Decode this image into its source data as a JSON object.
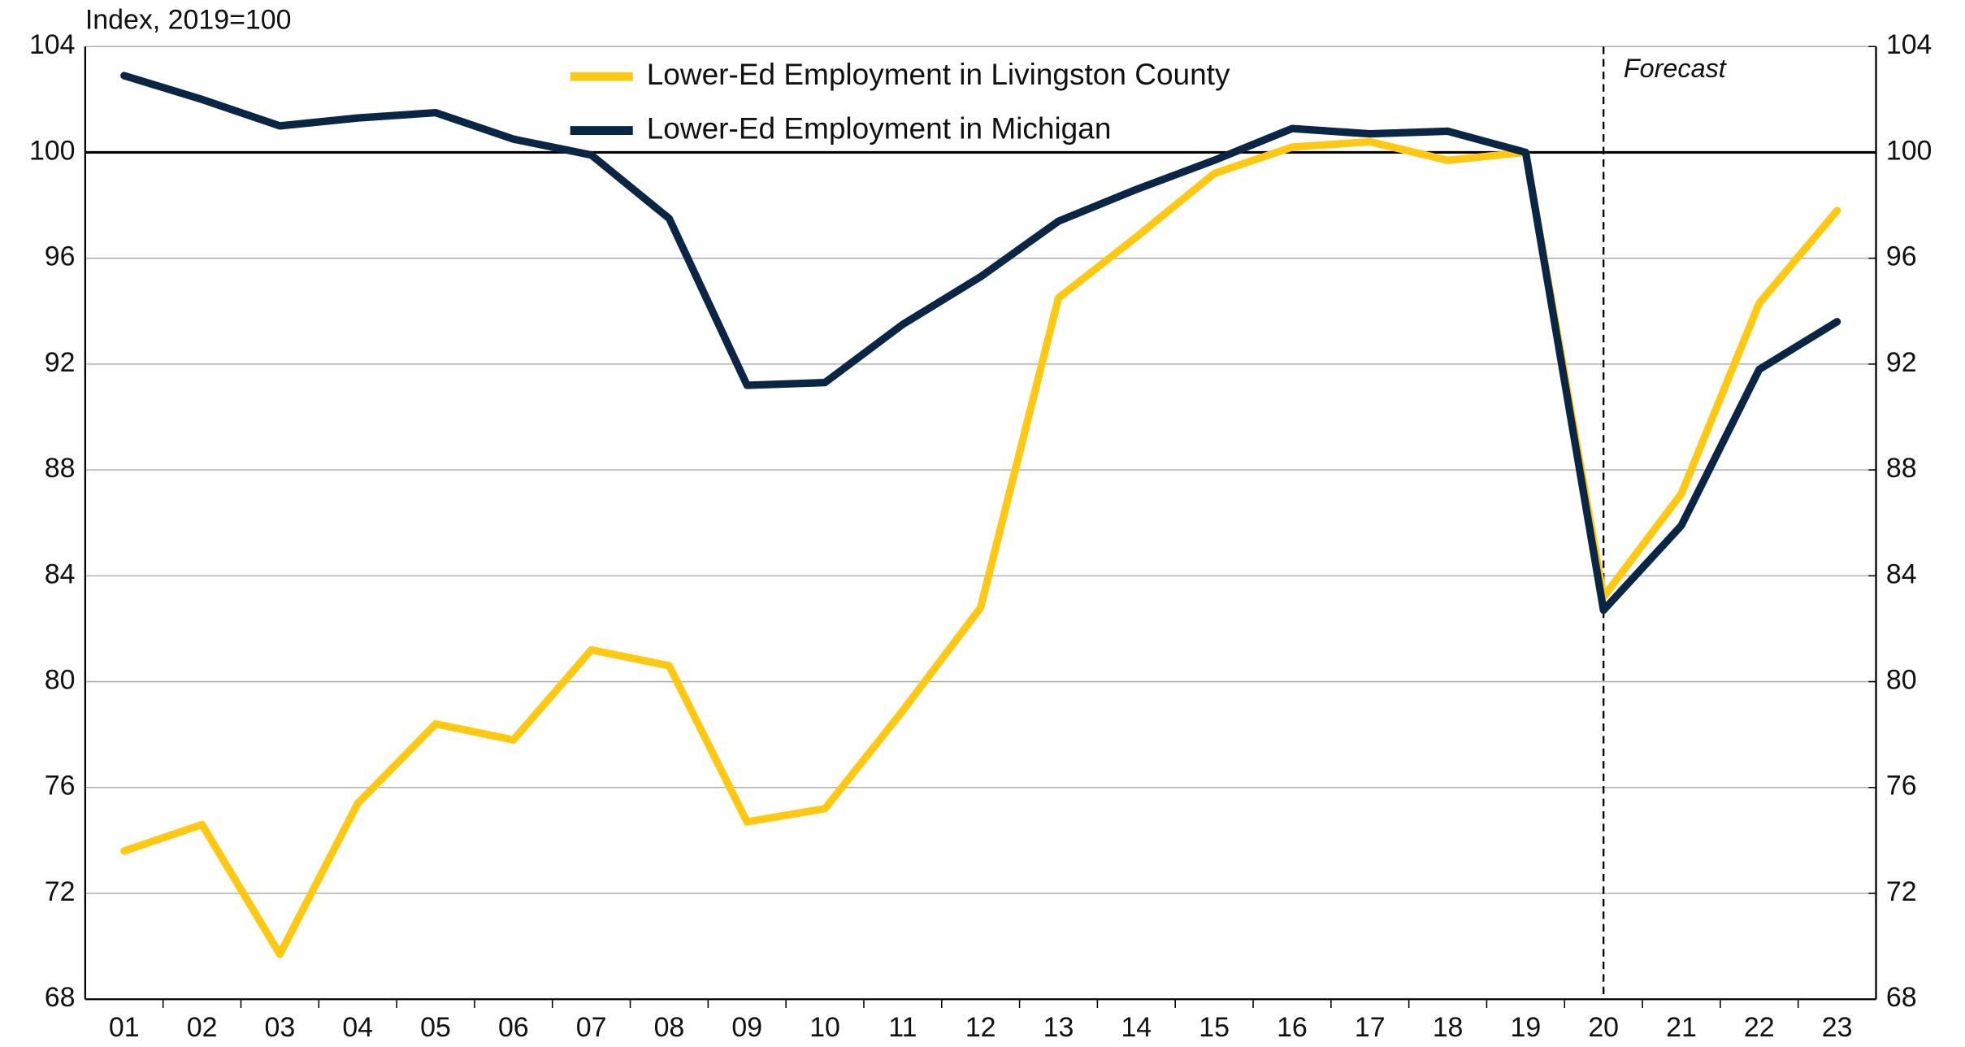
{
  "chart_data": {
    "type": "line",
    "y_axis_label": "Index, 2019=100",
    "annotation": "Forecast",
    "forecast_start": "20",
    "reference_line": 100,
    "categories": [
      "01",
      "02",
      "03",
      "04",
      "05",
      "06",
      "07",
      "08",
      "09",
      "10",
      "11",
      "12",
      "13",
      "14",
      "15",
      "16",
      "17",
      "18",
      "19",
      "20",
      "21",
      "22",
      "23"
    ],
    "series": [
      {
        "name": "Lower-Ed Employment in Livingston County",
        "color": "#ffc913",
        "values": [
          73.6,
          74.6,
          69.7,
          75.4,
          78.4,
          77.8,
          81.2,
          80.6,
          74.7,
          75.2,
          78.9,
          82.8,
          94.5,
          96.8,
          99.2,
          100.2,
          100.4,
          99.7,
          100,
          83.2,
          87.1,
          94.3,
          97.8
        ]
      },
      {
        "name": "Lower-Ed Employment in Michigan",
        "color": "#0b2545",
        "values": [
          102.9,
          102.0,
          101.0,
          101.3,
          101.5,
          100.5,
          99.9,
          97.5,
          91.2,
          91.3,
          93.5,
          95.3,
          97.4,
          98.6,
          99.7,
          100.9,
          100.7,
          100.8,
          100,
          82.7,
          85.9,
          91.8,
          93.6
        ]
      }
    ],
    "ylim": [
      68,
      104
    ],
    "yticks": [
      68,
      72,
      76,
      80,
      84,
      88,
      92,
      96,
      100,
      104
    ],
    "y2lim": [
      68,
      104
    ],
    "y2ticks": [
      68,
      72,
      76,
      80,
      84,
      88,
      92,
      96,
      100,
      104
    ],
    "grid": true
  }
}
